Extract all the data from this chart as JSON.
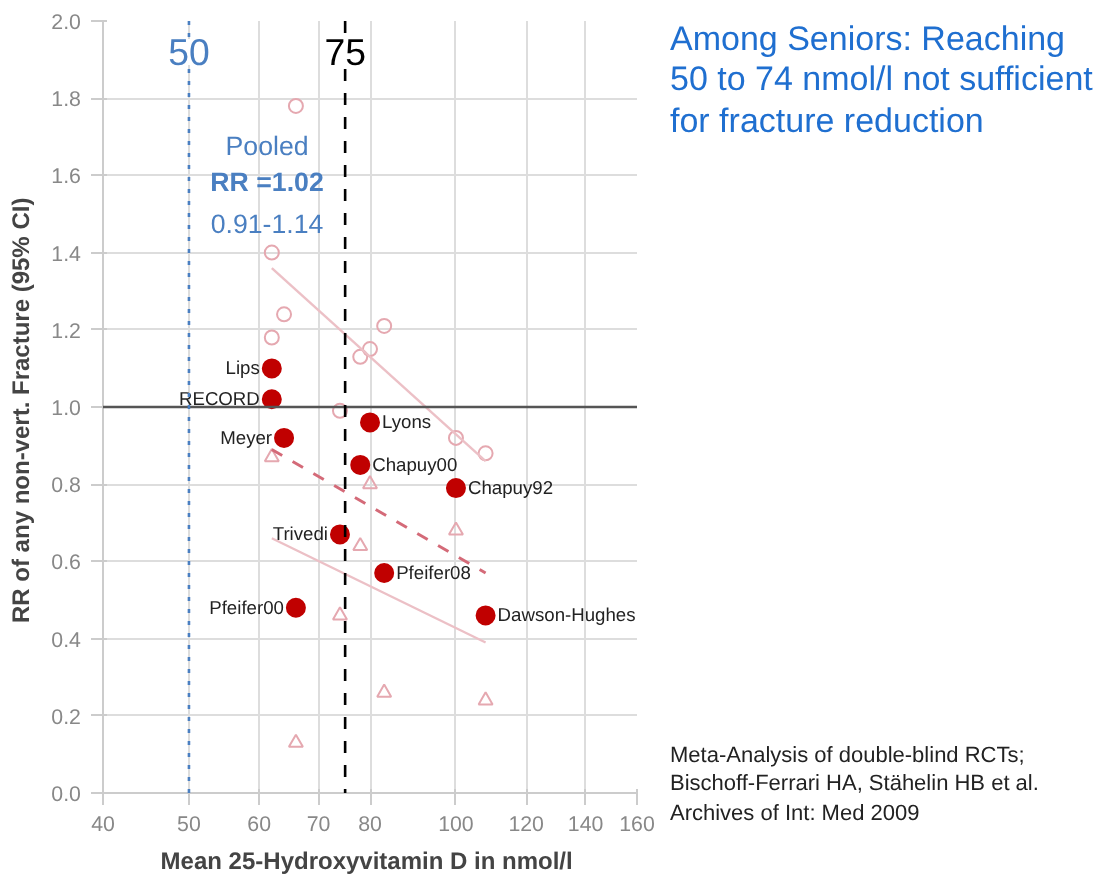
{
  "chart_data": {
    "type": "scatter",
    "title": "Among Seniors: Reaching 50 to 74 nmol/l not sufficient for fracture reduction",
    "xlabel": "Mean 25-Hydroxyvitamin D  in nmol/l",
    "ylabel": "RR of any non-vert. Fracture  (95% CI)",
    "log": "x",
    "xlim": [
      40,
      160
    ],
    "xticks": [
      40,
      50,
      60,
      70,
      80,
      100,
      120,
      140,
      160
    ],
    "ylim": [
      0,
      2
    ],
    "yticks": [
      {
        "value": 0,
        "label": "0.0"
      },
      0.2,
      0.4,
      0.6,
      0.8,
      {
        "value": 1,
        "label": "1.0"
      },
      1.2,
      1.4,
      1.6,
      1.8,
      {
        "value": 2,
        "label": "2.0"
      }
    ],
    "grid": true,
    "series": [
      {
        "marker": "circle",
        "color": "#c00000",
        "name": "Lips",
        "x": [
          62
        ],
        "values": [
          1.1
        ]
      },
      {
        "marker": "circle",
        "color": "#c00000",
        "name": "RECORD",
        "x": [
          62
        ],
        "values": [
          1.02
        ]
      },
      {
        "marker": "circle",
        "color": "#c00000",
        "name": "Meyer",
        "x": [
          64
        ],
        "values": [
          0.92
        ]
      },
      {
        "marker": "circle",
        "color": "#c00000",
        "name": "Lyons",
        "x": [
          80
        ],
        "values": [
          0.96
        ]
      },
      {
        "marker": "circle",
        "color": "#c00000",
        "name": "Chapuy00",
        "x": [
          78
        ],
        "values": [
          0.85
        ]
      },
      {
        "marker": "circle",
        "color": "#c00000",
        "name": "Chapuy92",
        "x": [
          100
        ],
        "values": [
          0.79
        ]
      },
      {
        "marker": "circle",
        "color": "#c00000",
        "name": "Trivedi",
        "x": [
          74
        ],
        "values": [
          0.67
        ]
      },
      {
        "marker": "circle",
        "color": "#c00000",
        "name": "Pfeifer08",
        "x": [
          83
        ],
        "values": [
          0.57
        ]
      },
      {
        "marker": "circle",
        "color": "#c00000",
        "name": "Pfeifer00",
        "x": [
          66
        ],
        "values": [
          0.48
        ]
      },
      {
        "marker": "circle",
        "color": "#c00000",
        "name": "Dawson-Hughes",
        "x": [
          108
        ],
        "values": [
          0.46
        ]
      },
      {
        "marker": "circle",
        "color": "#e5a8b0",
        "x": [
          66,
          62,
          64,
          62,
          83,
          78,
          80,
          74,
          100,
          108
        ],
        "values": [
          1.78,
          1.4,
          1.24,
          1.18,
          1.21,
          1.13,
          1.15,
          0.99,
          0.92,
          0.88
        ]
      },
      {
        "marker": "triangle",
        "color": "#e5a8b0",
        "x": [
          62,
          80,
          100,
          78,
          74,
          83,
          66,
          108
        ],
        "values": [
          0.87,
          0.8,
          0.68,
          0.64,
          0.46,
          0.26,
          0.13,
          0.24
        ]
      },
      {
        "type": "line",
        "line_style": "solid",
        "color": "#ecc0c6",
        "x": [
          62,
          108
        ],
        "values": [
          1.36,
          0.86
        ]
      },
      {
        "type": "line",
        "line_style": "dashed",
        "color": "#d46a78",
        "x": [
          62,
          108
        ],
        "values": [
          0.89,
          0.57
        ]
      },
      {
        "type": "line",
        "line_style": "solid",
        "color": "#ecc0c6",
        "x": [
          62,
          108
        ],
        "values": [
          0.66,
          0.39
        ]
      }
    ],
    "ref_lines": [
      {
        "axis": "y",
        "value": 1,
        "color": "#555555",
        "line_style": "solid"
      },
      {
        "axis": "x",
        "value": 50,
        "label": "50",
        "color": "#4a7fc1",
        "line_style": "dotted"
      },
      {
        "axis": "x",
        "value": 75,
        "label": "75",
        "color": "#000000",
        "line_style": "dashed"
      }
    ],
    "annotations": [
      "Pooled",
      "RR =1.02",
      "0.91-1.14",
      "Meta-Analysis of double-blind RCTs;",
      "Bischoff-Ferrari HA, Stähelin HB et al.",
      "Archives of Int: Med 2009"
    ]
  }
}
